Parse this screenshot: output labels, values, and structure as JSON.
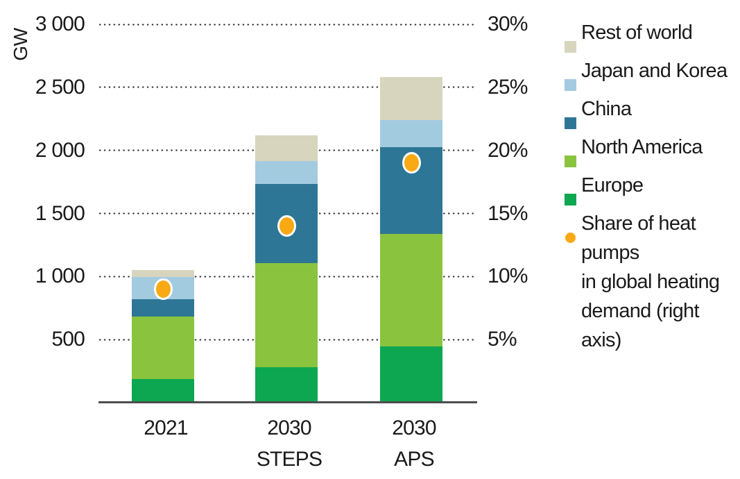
{
  "chart_data": {
    "type": "bar",
    "stacked": true,
    "title": "",
    "unit": "GW",
    "categories": [
      "2021",
      "2030 STEPS",
      "2030 APS"
    ],
    "category_label_lines": [
      [
        "2021"
      ],
      [
        "2030",
        "STEPS"
      ],
      [
        "2030",
        "APS"
      ]
    ],
    "series": [
      {
        "name": "Europe",
        "color": "#0ca750",
        "values": [
          185,
          280,
          445
        ]
      },
      {
        "name": "North America",
        "color": "#8ac43f",
        "values": [
          495,
          825,
          890
        ]
      },
      {
        "name": "China",
        "color": "#2e7695",
        "values": [
          140,
          630,
          690
        ]
      },
      {
        "name": "Japan and Korea",
        "color": "#a3cbe0",
        "values": [
          175,
          180,
          215
        ]
      },
      {
        "name": "Rest of world",
        "color": "#d8d5bf",
        "values": [
          55,
          205,
          340
        ]
      }
    ],
    "totals_gw": [
      1050,
      2120,
      2580
    ],
    "share_series": {
      "name": "Share of heat pumps in global heating demand (right axis)",
      "color": "#f8a914",
      "marker": "circle",
      "values_percent": [
        9,
        14,
        19
      ]
    },
    "left_axis": {
      "label": "GW",
      "min": 0,
      "max": 3000,
      "ticks": [
        {
          "value": 500,
          "label": "500"
        },
        {
          "value": 1000,
          "label": "1 000"
        },
        {
          "value": 1500,
          "label": "1 500"
        },
        {
          "value": 2000,
          "label": "2 000"
        },
        {
          "value": 2500,
          "label": "2 500"
        },
        {
          "value": 3000,
          "label": "3 000"
        }
      ]
    },
    "right_axis": {
      "min": 0,
      "max": 30,
      "ticks": [
        {
          "value": 5,
          "label": "5%"
        },
        {
          "value": 10,
          "label": "10%"
        },
        {
          "value": 15,
          "label": "15%"
        },
        {
          "value": 20,
          "label": "20%"
        },
        {
          "value": 25,
          "label": "25%"
        },
        {
          "value": 30,
          "label": "30%"
        }
      ]
    },
    "gridlines": "dotted-horizontal",
    "legend_position": "right",
    "colors": {
      "axis_line": "#4d4d4d",
      "gridline_dots": "#2b2b2b",
      "text": "#1a1a1a",
      "background": "#ffffff",
      "dot_ring": "#ffffff"
    }
  },
  "legend": {
    "items": [
      {
        "label": "Rest of world",
        "label_lines": [
          "Rest of world"
        ],
        "color": "#d8d5bf",
        "marker": "square"
      },
      {
        "label": "Japan and Korea",
        "label_lines": [
          "Japan and Korea"
        ],
        "color": "#a3cbe0",
        "marker": "square"
      },
      {
        "label": "China",
        "label_lines": [
          "China"
        ],
        "color": "#2e7695",
        "marker": "square"
      },
      {
        "label": "North America",
        "label_lines": [
          "North America"
        ],
        "color": "#8ac43f",
        "marker": "square"
      },
      {
        "label": "Europe",
        "label_lines": [
          "Europe"
        ],
        "color": "#0ca750",
        "marker": "square"
      },
      {
        "label": "Share of heat pumps in global heating demand (right axis)",
        "label_lines": [
          "Share of heat pumps",
          "in global heating",
          "demand (right axis)"
        ],
        "color": "#f8a914",
        "marker": "circle"
      }
    ]
  }
}
